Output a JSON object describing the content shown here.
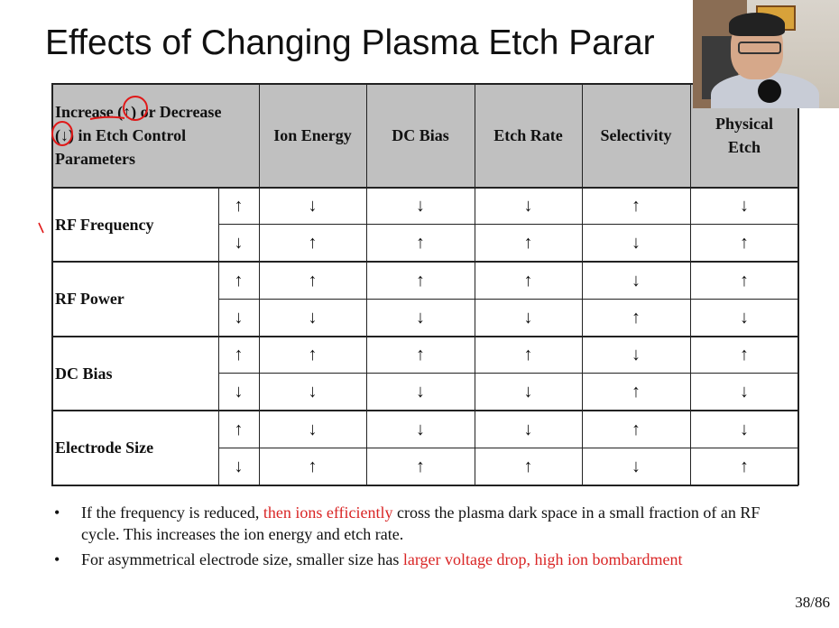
{
  "title": "Effects of Changing Plasma Etch Parar",
  "table": {
    "header_left": [
      "Increase (↑) or Decrease",
      "(↓) in Etch Control",
      "Parameters"
    ],
    "columns": [
      "Ion Energy",
      "DC Bias",
      "Etch Rate",
      "Selectivity",
      "Physical Etch"
    ],
    "groups": [
      {
        "param": "RF Frequency",
        "rows": [
          {
            "dir": "↑",
            "effects": [
              "↓",
              "↓",
              "↓",
              "↑",
              "↓"
            ]
          },
          {
            "dir": "↓",
            "effects": [
              "↑",
              "↑",
              "↑",
              "↓",
              "↑"
            ]
          }
        ]
      },
      {
        "param": "RF Power",
        "rows": [
          {
            "dir": "↑",
            "effects": [
              "↑",
              "↑",
              "↑",
              "↓",
              "↑"
            ]
          },
          {
            "dir": "↓",
            "effects": [
              "↓",
              "↓",
              "↓",
              "↑",
              "↓"
            ]
          }
        ]
      },
      {
        "param": "DC Bias",
        "rows": [
          {
            "dir": "↑",
            "effects": [
              "↑",
              "↑",
              "↑",
              "↓",
              "↑"
            ]
          },
          {
            "dir": "↓",
            "effects": [
              "↓",
              "↓",
              "↓",
              "↑",
              "↓"
            ]
          }
        ]
      },
      {
        "param": "Electrode Size",
        "rows": [
          {
            "dir": "↑",
            "effects": [
              "↓",
              "↓",
              "↓",
              "↑",
              "↓"
            ]
          },
          {
            "dir": "↓",
            "effects": [
              "↑",
              "↑",
              "↑",
              "↓",
              "↑"
            ]
          }
        ]
      }
    ]
  },
  "bullets": [
    {
      "parts": [
        {
          "text": "If the frequency is reduced, ",
          "red": false
        },
        {
          "text": "then ions efficiently",
          "red": true
        },
        {
          "text": " cross the plasma dark space in a small fraction of an RF cycle. This increases the ion energy and etch rate.",
          "red": false
        }
      ]
    },
    {
      "parts": [
        {
          "text": "For asymmetrical electrode size, smaller size has ",
          "red": false
        },
        {
          "text": "larger voltage drop, high ion bombardment",
          "red": true
        }
      ]
    }
  ],
  "bullet_glyph": "•",
  "page_number": "38/86",
  "colors": {
    "header_bg": "#c0c0c0",
    "highlight": "#d92525",
    "annotation": "#e01818"
  },
  "webcam": {
    "icon": "presenter-webcam-feed"
  }
}
